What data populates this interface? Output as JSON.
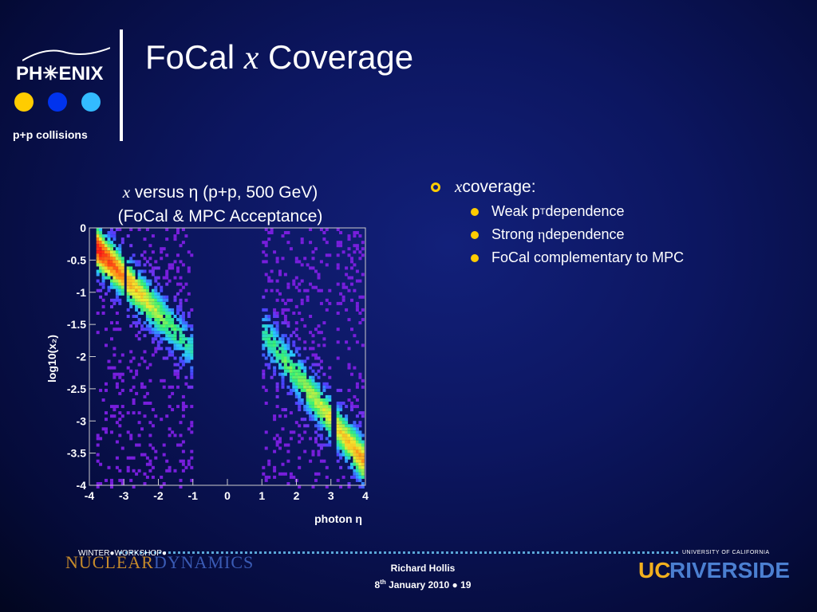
{
  "logo": {
    "text": "PH☆ENIX",
    "word_left": "PH",
    "word_right": "ENIX",
    "subtitle": "p+p collisions",
    "dots": [
      "#ffcc00",
      "#0033ee",
      "#33bbff"
    ]
  },
  "slide": {
    "title_prefix": "FoCal ",
    "title_var": "x",
    "title_suffix": " Coverage"
  },
  "plot": {
    "title_line1_var": "x",
    "title_line1_rest": " versus η (p+p, 500 GeV)",
    "title_line2": "(FoCal & MPC Acceptance)",
    "ylabel": "log10(x₂)",
    "xlabel": "photon η",
    "xticks": [
      "-4",
      "-3",
      "-2",
      "-1",
      "0",
      "1",
      "2",
      "3",
      "4"
    ],
    "yticks": [
      "0",
      "-0.5",
      "-1",
      "-1.5",
      "-2",
      "-2.5",
      "-3",
      "-3.5",
      "-4"
    ]
  },
  "chart_data": {
    "type": "heatmap",
    "title": "x versus η (p+p, 500 GeV) (FoCal & MPC Acceptance)",
    "xlabel": "photon η",
    "ylabel": "log10(x2)",
    "xlim": [
      -4,
      4
    ],
    "ylim": [
      -4,
      0
    ],
    "bands": [
      {
        "eta_range": [
          -3.8,
          -1.0
        ],
        "log10x_at_start": -0.3,
        "log10x_at_end": -1.9,
        "gap_eta": -3.0
      },
      {
        "eta_range": [
          1.0,
          3.9
        ],
        "log10x_at_start": -1.6,
        "log10x_at_end": -3.6,
        "gap_eta": 3.05
      }
    ]
  },
  "bullets": {
    "main_var": "x",
    "main_rest": " coverage:",
    "sub": [
      {
        "pre": "Weak p",
        "sub": "T",
        "post": " dependence"
      },
      {
        "pre": "Strong ",
        "eta": "η",
        "post": " dependence"
      },
      {
        "pre": "FoCal complementary to MPC"
      }
    ]
  },
  "footer": {
    "workshop_small": "WINTER●WORKSHOP●",
    "workshop_nuclear": "NUCLEAR",
    "workshop_dynamics": "DYNAMICS",
    "author": "Richard Hollis",
    "date_pre": "8",
    "date_sup": "th",
    "date_post": " January 2010 ● 19",
    "ucr_small": "UNIVERSITY OF CALIFORNIA",
    "ucr_uc": "UC",
    "ucr_riv": "RIVERSIDE"
  }
}
